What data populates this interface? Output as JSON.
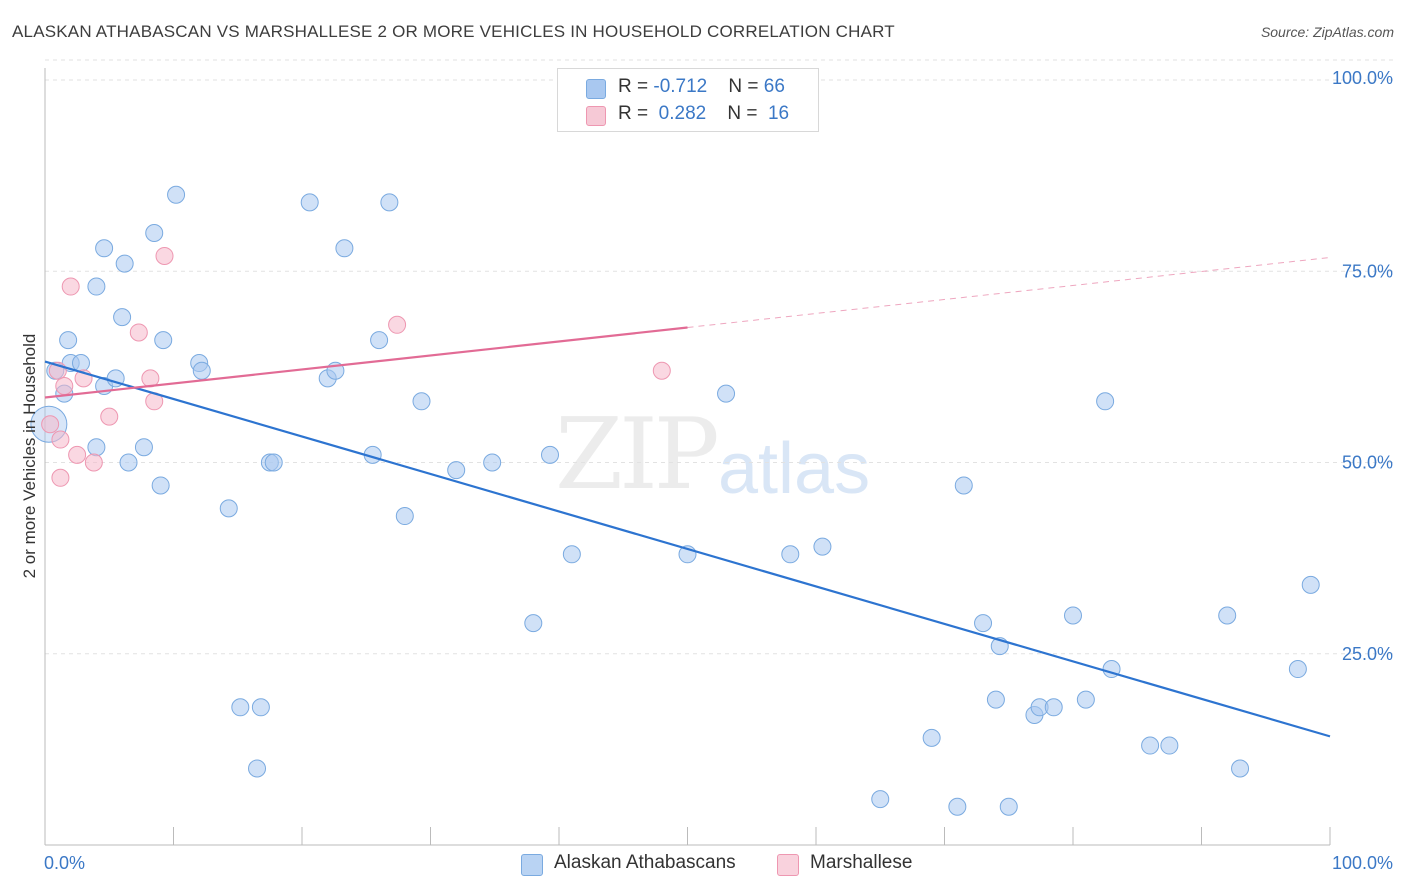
{
  "title": "ALASKAN ATHABASCAN VS MARSHALLESE 2 OR MORE VEHICLES IN HOUSEHOLD CORRELATION CHART",
  "source": "Source: ZipAtlas.com",
  "watermark": {
    "zip": "ZIP",
    "atlas": "atlas"
  },
  "legend_top": [
    {
      "r_label": "R = ",
      "r_value": "-0.712",
      "n_label": "N = ",
      "n_value": "66",
      "color": "#a9c8f0"
    },
    {
      "r_label": "R = ",
      "r_value": "0.282",
      "n_label": "N = ",
      "n_value": "16",
      "color": "#f6b8cb"
    }
  ],
  "chart_data": {
    "type": "scatter",
    "ylabel": "2 or more Vehicles in Household",
    "xlabel": "",
    "xlim": [
      0,
      100
    ],
    "ylim": [
      0,
      100
    ],
    "x_tick_labels": [
      {
        "value": 0,
        "label": "0.0%"
      },
      {
        "value": 100,
        "label": "100.0%"
      }
    ],
    "y_tick_labels": [
      {
        "value": 25,
        "label": "25.0%"
      },
      {
        "value": 50,
        "label": "50.0%"
      },
      {
        "value": 75,
        "label": "75.0%"
      },
      {
        "value": 100,
        "label": "100.0%"
      }
    ],
    "grid": true,
    "legend_position": "top-center",
    "series": [
      {
        "name": "Alaskan Athabascans",
        "color": "#a9c8f0",
        "stroke": "#7aaae0",
        "trend_color": "#2d74d0",
        "trend": {
          "x0": 0,
          "y0": 63.2,
          "x1": 100,
          "y1": 14.2,
          "solid_to": 100
        },
        "points": [
          [
            0.8,
            62
          ],
          [
            1.5,
            59
          ],
          [
            1.8,
            66
          ],
          [
            2.0,
            63
          ],
          [
            2.8,
            63
          ],
          [
            4.0,
            73
          ],
          [
            4.6,
            60
          ],
          [
            4.0,
            52
          ],
          [
            5.5,
            61
          ],
          [
            4.6,
            78
          ],
          [
            6.0,
            69
          ],
          [
            6.2,
            76
          ],
          [
            6.5,
            50
          ],
          [
            7.7,
            52
          ],
          [
            8.5,
            80
          ],
          [
            9.0,
            47
          ],
          [
            9.2,
            66
          ],
          [
            10.2,
            85
          ],
          [
            12.0,
            63
          ],
          [
            12.2,
            62
          ],
          [
            14.3,
            44
          ],
          [
            15.2,
            18
          ],
          [
            16.5,
            10
          ],
          [
            16.8,
            18
          ],
          [
            17.5,
            50
          ],
          [
            17.8,
            50
          ],
          [
            20.6,
            84
          ],
          [
            22.0,
            61
          ],
          [
            22.6,
            62
          ],
          [
            23.3,
            78
          ],
          [
            25.5,
            51
          ],
          [
            26.0,
            66
          ],
          [
            26.8,
            84
          ],
          [
            28.0,
            43
          ],
          [
            29.3,
            58
          ],
          [
            32.0,
            49
          ],
          [
            34.8,
            50
          ],
          [
            38.0,
            29
          ],
          [
            39.3,
            51
          ],
          [
            41.0,
            38
          ],
          [
            50.0,
            38
          ],
          [
            53.0,
            59
          ],
          [
            58.0,
            38
          ],
          [
            60.5,
            39
          ],
          [
            65.0,
            6
          ],
          [
            69.0,
            14
          ],
          [
            71.0,
            5
          ],
          [
            71.5,
            47
          ],
          [
            73.0,
            29
          ],
          [
            74.0,
            19
          ],
          [
            74.3,
            26
          ],
          [
            75.0,
            5
          ],
          [
            77.0,
            17
          ],
          [
            77.4,
            18
          ],
          [
            78.5,
            18
          ],
          [
            80.0,
            30
          ],
          [
            81.0,
            19
          ],
          [
            82.5,
            58
          ],
          [
            83.0,
            23
          ],
          [
            86.0,
            13
          ],
          [
            87.5,
            13
          ],
          [
            92.0,
            30
          ],
          [
            93.0,
            10
          ],
          [
            97.5,
            23
          ],
          [
            98.5,
            34
          ],
          [
            0.3,
            55
          ]
        ]
      },
      {
        "name": "Marshallese",
        "color": "#f6b8cb",
        "stroke": "#ee97b1",
        "trend_color": "#e26b95",
        "trend": {
          "x0": 0,
          "y0": 58.5,
          "x1": 100,
          "y1": 76.8,
          "solid_to": 50
        },
        "points": [
          [
            0.4,
            55
          ],
          [
            1.0,
            62
          ],
          [
            1.2,
            53
          ],
          [
            1.2,
            48
          ],
          [
            1.5,
            60
          ],
          [
            2.0,
            73
          ],
          [
            2.5,
            51
          ],
          [
            3.0,
            61
          ],
          [
            3.8,
            50
          ],
          [
            5.0,
            56
          ],
          [
            7.3,
            67
          ],
          [
            8.2,
            61
          ],
          [
            8.5,
            58
          ],
          [
            9.3,
            77
          ],
          [
            27.4,
            68
          ],
          [
            48.0,
            62
          ]
        ]
      }
    ]
  }
}
